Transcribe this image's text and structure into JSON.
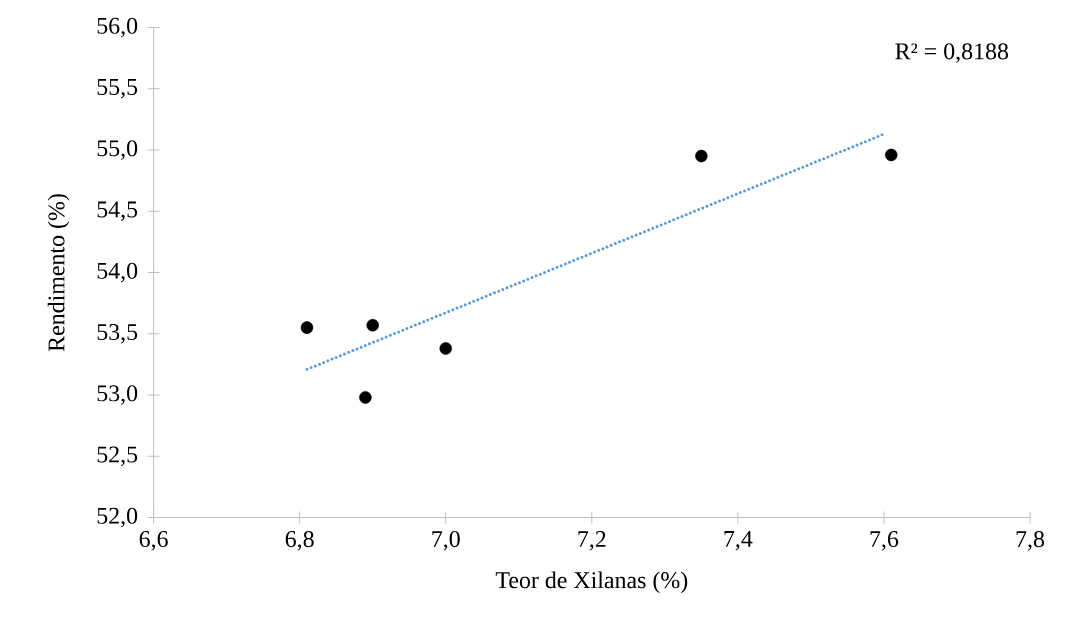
{
  "chart_data": {
    "type": "scatter",
    "xlabel": "Teor de Xilanas (%)",
    "ylabel": "Rendimento (%)",
    "xlim": [
      6.6,
      7.8
    ],
    "ylim": [
      52.0,
      56.0
    ],
    "xticks": [
      {
        "value": 6.6,
        "label": "6,6"
      },
      {
        "value": 6.8,
        "label": "6,8"
      },
      {
        "value": 7.0,
        "label": "7,0"
      },
      {
        "value": 7.2,
        "label": "7,2"
      },
      {
        "value": 7.4,
        "label": "7,4"
      },
      {
        "value": 7.6,
        "label": "7,6"
      },
      {
        "value": 7.8,
        "label": "7,8"
      }
    ],
    "yticks": [
      {
        "value": 52.0,
        "label": "52,0"
      },
      {
        "value": 52.5,
        "label": "52,5"
      },
      {
        "value": 53.0,
        "label": "53,0"
      },
      {
        "value": 53.5,
        "label": "53,5"
      },
      {
        "value": 54.0,
        "label": "54,0"
      },
      {
        "value": 54.5,
        "label": "54,5"
      },
      {
        "value": 55.0,
        "label": "55,0"
      },
      {
        "value": 55.5,
        "label": "55,5"
      },
      {
        "value": 56.0,
        "label": "56,0"
      }
    ],
    "grid": false,
    "series": [
      {
        "color": "#000000",
        "marker": "circle",
        "x": [
          6.81,
          6.9,
          6.89,
          7.0,
          7.35,
          7.61
        ],
        "values": [
          53.55,
          53.57,
          52.98,
          53.38,
          54.95,
          54.96
        ]
      },
      {
        "type": "line",
        "color": "#5b9bd5",
        "marker": "none",
        "line_style": "dotted",
        "x": [
          6.81,
          7.6
        ],
        "values": [
          53.21,
          55.13
        ]
      }
    ],
    "annotations": [
      "R² = 0,8188"
    ]
  }
}
